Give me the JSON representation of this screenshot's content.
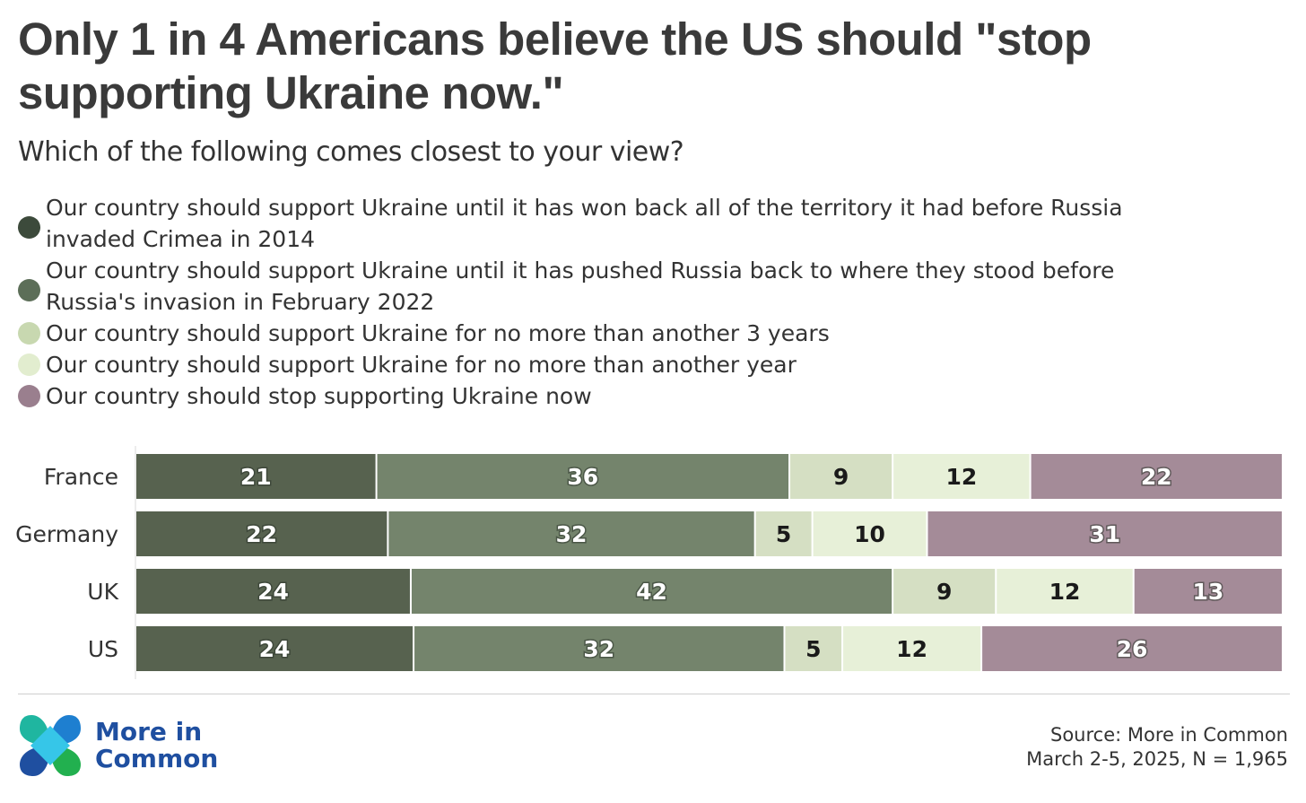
{
  "header": {
    "title": "Only 1 in 4 Americans believe the US should \"stop supporting Ukraine now.\"",
    "subtitle": "Which of the following comes closest to your view?"
  },
  "legend": [
    {
      "label": "Our country should support Ukraine until it has won back all of the territory it had before Russia invaded Crimea in 2014",
      "color": "#3c4a3b"
    },
    {
      "label": "Our country should support Ukraine until it has pushed Russia back to where they stood before Russia's invasion in February 2022",
      "color": "#5c6e58"
    },
    {
      "label": "Our country should support Ukraine for no more than another 3 years",
      "color": "#c8d8b0"
    },
    {
      "label": "Our country should support Ukraine for no more than another year",
      "color": "#e2edcf"
    },
    {
      "label": "Our country should stop supporting Ukraine now",
      "color": "#9a7f8e"
    }
  ],
  "chart_data": {
    "type": "bar",
    "orientation": "horizontal",
    "stacked": true,
    "categories": [
      "France",
      "Germany",
      "UK",
      "US"
    ],
    "series": [
      {
        "name": "Our country should support Ukraine until it has won back all of the territory it had before Russia invaded Crimea in 2014",
        "values": [
          21,
          22,
          24,
          24
        ],
        "color": "#57624f",
        "label_color": "#ffffff"
      },
      {
        "name": "Our country should support Ukraine until it has pushed Russia back to where they stood before Russia's invasion in February 2022",
        "values": [
          36,
          32,
          42,
          32
        ],
        "color": "#74846c",
        "label_color": "#ffffff"
      },
      {
        "name": "Our country should support Ukraine for no more than another 3 years",
        "values": [
          9,
          5,
          9,
          5
        ],
        "color": "#d5dfc3",
        "label_color": "#1a1a1a"
      },
      {
        "name": "Our country should support Ukraine for no more than another year",
        "values": [
          12,
          10,
          12,
          12
        ],
        "color": "#e7f0d8",
        "label_color": "#1a1a1a"
      },
      {
        "name": "Our country should stop supporting Ukraine now",
        "values": [
          22,
          31,
          13,
          26
        ],
        "color": "#a48b98",
        "label_color": "#ffffff"
      }
    ],
    "legend_position": "top",
    "grid": false
  },
  "footer": {
    "logo_text_line1": "More in",
    "logo_text_line2": "Common",
    "source_line1": "Source: More in Common",
    "source_line2": "March 2-5, 2025, N = 1,965"
  }
}
